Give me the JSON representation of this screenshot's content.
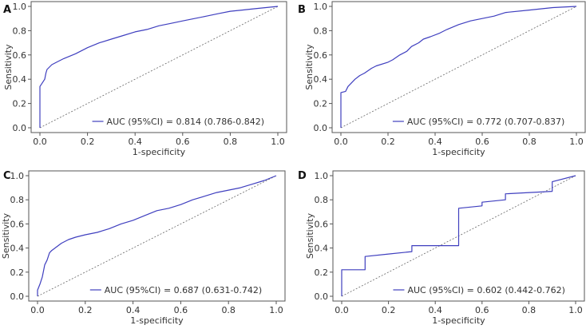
{
  "chart_data": [
    {
      "type": "line",
      "panel_label": "A",
      "xlabel": "1-specificity",
      "ylabel": "Sensitivity",
      "xlim": [
        0,
        1
      ],
      "ylim": [
        0,
        1
      ],
      "x_ticks": [
        "0.0",
        "0.2",
        "0.4",
        "0.6",
        "0.8",
        "1.0"
      ],
      "y_ticks": [
        "0.0",
        "0.2",
        "0.4",
        "0.6",
        "0.8",
        "1.0"
      ],
      "grid": false,
      "legend_position": "bottom-right",
      "reference_line": true,
      "series": [
        {
          "name": "AUC (95%CI) = 0.814 (0.786-0.842)",
          "color": "#3f3fbf",
          "x": [
            0,
            0,
            0.01,
            0.02,
            0.025,
            0.03,
            0.04,
            0.05,
            0.07,
            0.1,
            0.15,
            0.2,
            0.25,
            0.3,
            0.35,
            0.4,
            0.45,
            0.5,
            0.55,
            0.6,
            0.65,
            0.7,
            0.75,
            0.8,
            0.85,
            0.9,
            0.95,
            1.0
          ],
          "y": [
            0,
            0.34,
            0.37,
            0.4,
            0.45,
            0.48,
            0.5,
            0.52,
            0.54,
            0.57,
            0.61,
            0.66,
            0.7,
            0.73,
            0.76,
            0.79,
            0.81,
            0.84,
            0.86,
            0.88,
            0.9,
            0.92,
            0.94,
            0.96,
            0.97,
            0.98,
            0.99,
            1.0
          ]
        }
      ]
    },
    {
      "type": "line",
      "panel_label": "B",
      "xlabel": "1-specificity",
      "ylabel": "Sensitivity",
      "xlim": [
        0,
        1
      ],
      "ylim": [
        0,
        1
      ],
      "x_ticks": [
        "0.0",
        "0.2",
        "0.4",
        "0.6",
        "0.8",
        "1.0"
      ],
      "y_ticks": [
        "0.0",
        "0.2",
        "0.4",
        "0.6",
        "0.8",
        "1.0"
      ],
      "grid": false,
      "legend_position": "bottom-right",
      "reference_line": true,
      "series": [
        {
          "name": "AUC (95%CI) = 0.772 (0.707-0.837)",
          "color": "#3f3fbf",
          "x": [
            0,
            0,
            0.02,
            0.03,
            0.06,
            0.08,
            0.1,
            0.13,
            0.15,
            0.2,
            0.22,
            0.25,
            0.28,
            0.3,
            0.33,
            0.35,
            0.38,
            0.42,
            0.45,
            0.5,
            0.55,
            0.6,
            0.65,
            0.7,
            0.8,
            0.9,
            1.0
          ],
          "y": [
            0,
            0.29,
            0.3,
            0.34,
            0.4,
            0.43,
            0.45,
            0.49,
            0.51,
            0.54,
            0.56,
            0.6,
            0.63,
            0.67,
            0.7,
            0.73,
            0.75,
            0.78,
            0.81,
            0.85,
            0.88,
            0.9,
            0.92,
            0.95,
            0.97,
            0.99,
            1.0
          ]
        }
      ]
    },
    {
      "type": "line",
      "panel_label": "C",
      "xlabel": "1-specificity",
      "ylabel": "Sensitivity",
      "xlim": [
        0,
        1
      ],
      "ylim": [
        0,
        1
      ],
      "x_ticks": [
        "0.0",
        "0.2",
        "0.4",
        "0.6",
        "0.8",
        "1.0"
      ],
      "y_ticks": [
        "0.0",
        "0.2",
        "0.4",
        "0.6",
        "0.8",
        "1.0"
      ],
      "grid": false,
      "legend_position": "bottom-right",
      "reference_line": true,
      "series": [
        {
          "name": "AUC (95%CI) = 0.687 (0.631-0.742)",
          "color": "#3f3fbf",
          "x": [
            0,
            0,
            0.01,
            0.02,
            0.03,
            0.04,
            0.05,
            0.06,
            0.08,
            0.1,
            0.13,
            0.16,
            0.2,
            0.25,
            0.3,
            0.35,
            0.4,
            0.45,
            0.5,
            0.55,
            0.6,
            0.65,
            0.7,
            0.75,
            0.8,
            0.85,
            0.9,
            0.95,
            1.0
          ],
          "y": [
            0,
            0.05,
            0.1,
            0.16,
            0.26,
            0.3,
            0.36,
            0.38,
            0.41,
            0.44,
            0.47,
            0.49,
            0.51,
            0.53,
            0.56,
            0.6,
            0.63,
            0.67,
            0.71,
            0.73,
            0.76,
            0.8,
            0.83,
            0.86,
            0.88,
            0.9,
            0.93,
            0.96,
            1.0
          ]
        }
      ]
    },
    {
      "type": "line",
      "panel_label": "D",
      "xlabel": "1-specificity",
      "ylabel": "Sensitivity",
      "xlim": [
        0,
        1
      ],
      "ylim": [
        0,
        1
      ],
      "x_ticks": [
        "0.0",
        "0.2",
        "0.4",
        "0.6",
        "0.8",
        "1.0"
      ],
      "y_ticks": [
        "0.0",
        "0.2",
        "0.4",
        "0.6",
        "0.8",
        "1.0"
      ],
      "grid": false,
      "legend_position": "bottom-right",
      "reference_line": true,
      "series": [
        {
          "name": "AUC (95%CI) = 0.602 (0.442-0.762)",
          "color": "#3f3fbf",
          "x": [
            0,
            0,
            0.1,
            0.1,
            0.2,
            0.3,
            0.3,
            0.5,
            0.5,
            0.6,
            0.6,
            0.7,
            0.7,
            0.9,
            0.9,
            1.0
          ],
          "y": [
            0,
            0.22,
            0.22,
            0.33,
            0.35,
            0.37,
            0.42,
            0.42,
            0.73,
            0.75,
            0.78,
            0.8,
            0.85,
            0.87,
            0.95,
            1.0
          ]
        }
      ]
    }
  ]
}
